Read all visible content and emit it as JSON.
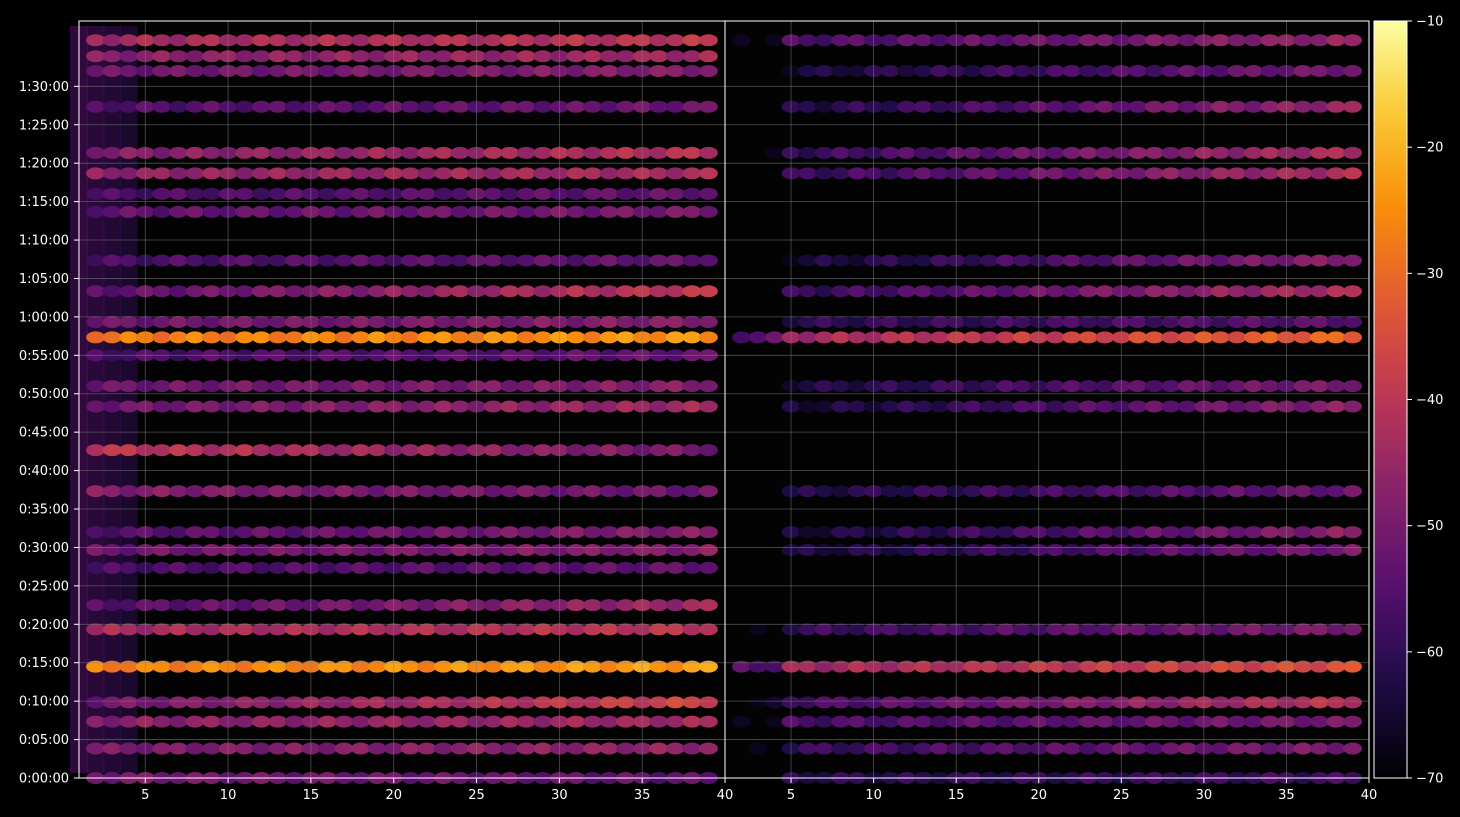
{
  "chart_data": {
    "type": "heatmap",
    "title": "",
    "xlabel": "",
    "ylabel": "",
    "panels": [
      {
        "name": "",
        "xlim": [
          1,
          40
        ],
        "xticks": [
          "5",
          "10",
          "15",
          "20",
          "25",
          "30",
          "35",
          "40"
        ],
        "bands": [
          {
            "t_sec": 0,
            "peak": -52,
            "slope": -0.1
          },
          {
            "t_sec": 230,
            "peak": -48,
            "slope": 0.1
          },
          {
            "t_sec": 440,
            "peak": -46,
            "slope": 0.1
          },
          {
            "t_sec": 590,
            "peak": -44,
            "slope": 0.4
          },
          {
            "t_sec": 870,
            "peak": -25,
            "slope": 0.1
          },
          {
            "t_sec": 1160,
            "peak": -42,
            "slope": 0.1
          },
          {
            "t_sec": 1350,
            "peak": -50,
            "slope": 0.3
          },
          {
            "t_sec": 1640,
            "peak": -55,
            "slope": 0.1
          },
          {
            "t_sec": 1780,
            "peak": -50,
            "slope": 0.1
          },
          {
            "t_sec": 1920,
            "peak": -52,
            "slope": 0.2
          },
          {
            "t_sec": 2240,
            "peak": -50,
            "slope": -0.1
          },
          {
            "t_sec": 2560,
            "peak": -45,
            "slope": -0.3
          },
          {
            "t_sec": 2900,
            "peak": -48,
            "slope": 0.2
          },
          {
            "t_sec": 3060,
            "peak": -50,
            "slope": 0.1
          },
          {
            "t_sec": 3300,
            "peak": -55,
            "slope": 0.1
          },
          {
            "t_sec": 3440,
            "peak": -26,
            "slope": 0.1
          },
          {
            "t_sec": 3560,
            "peak": -50,
            "slope": 0.1
          },
          {
            "t_sec": 3800,
            "peak": -47,
            "slope": 0.4
          },
          {
            "t_sec": 4040,
            "peak": -55,
            "slope": 0.1
          },
          {
            "t_sec": 4420,
            "peak": -52,
            "slope": 0.1
          },
          {
            "t_sec": 4560,
            "peak": -55,
            "slope": 0.1
          },
          {
            "t_sec": 4720,
            "peak": -45,
            "slope": 0.1
          },
          {
            "t_sec": 4880,
            "peak": -45,
            "slope": 0.2
          },
          {
            "t_sec": 5240,
            "peak": -54,
            "slope": 0.1
          },
          {
            "t_sec": 5520,
            "peak": -50,
            "slope": 0.1
          },
          {
            "t_sec": 5635,
            "peak": -46,
            "slope": 0.1
          },
          {
            "t_sec": 5760,
            "peak": -42,
            "slope": 0.1
          }
        ]
      },
      {
        "name": "",
        "xlim": [
          1,
          40
        ],
        "xticks": [
          "5",
          "10",
          "15",
          "20",
          "25",
          "30",
          "35",
          "40"
        ],
        "bands": [
          {
            "t_sec": 0,
            "peak": -60,
            "slope": 0.1
          },
          {
            "t_sec": 230,
            "peak": -55,
            "slope": 0.3
          },
          {
            "t_sec": 440,
            "peak": -54,
            "slope": 0.2
          },
          {
            "t_sec": 590,
            "peak": -50,
            "slope": 0.5
          },
          {
            "t_sec": 870,
            "peak": -40,
            "slope": 0.3
          },
          {
            "t_sec": 1160,
            "peak": -55,
            "slope": 0.3
          },
          {
            "t_sec": 1780,
            "peak": -58,
            "slope": 0.4
          },
          {
            "t_sec": 1920,
            "peak": -57,
            "slope": 0.5
          },
          {
            "t_sec": 2240,
            "peak": -58,
            "slope": 0.3
          },
          {
            "t_sec": 2900,
            "peak": -57,
            "slope": 0.5
          },
          {
            "t_sec": 3060,
            "peak": -57,
            "slope": 0.4
          },
          {
            "t_sec": 3440,
            "peak": -38,
            "slope": 0.4
          },
          {
            "t_sec": 3560,
            "peak": -58,
            "slope": 0.2
          },
          {
            "t_sec": 3800,
            "peak": -52,
            "slope": 0.5
          },
          {
            "t_sec": 4040,
            "peak": -57,
            "slope": 0.5
          },
          {
            "t_sec": 4720,
            "peak": -52,
            "slope": 0.5
          },
          {
            "t_sec": 4880,
            "peak": -52,
            "slope": 0.5
          },
          {
            "t_sec": 5240,
            "peak": -55,
            "slope": 0.5
          },
          {
            "t_sec": 5520,
            "peak": -58,
            "slope": 0.4
          },
          {
            "t_sec": 5760,
            "peak": -52,
            "slope": 0.3
          }
        ]
      }
    ],
    "ylim_sec": [
      0,
      5910
    ],
    "yticks": [
      "0:00:00",
      "0:05:00",
      "0:10:00",
      "0:15:00",
      "0:20:00",
      "0:25:00",
      "0:30:00",
      "0:35:00",
      "0:40:00",
      "0:45:00",
      "0:50:00",
      "0:55:00",
      "1:00:00",
      "1:05:00",
      "1:10:00",
      "1:15:00",
      "1:20:00",
      "1:25:00",
      "1:30:00"
    ],
    "colorbar": {
      "range": [
        -70,
        -10
      ],
      "ticks": [
        "-10",
        "-20",
        "-30",
        "-40",
        "-50",
        "-60",
        "-70"
      ],
      "colormap": "inferno"
    },
    "grid": true,
    "background": "#000000",
    "text_color": "#ffffff",
    "grid_color": "#808080"
  }
}
